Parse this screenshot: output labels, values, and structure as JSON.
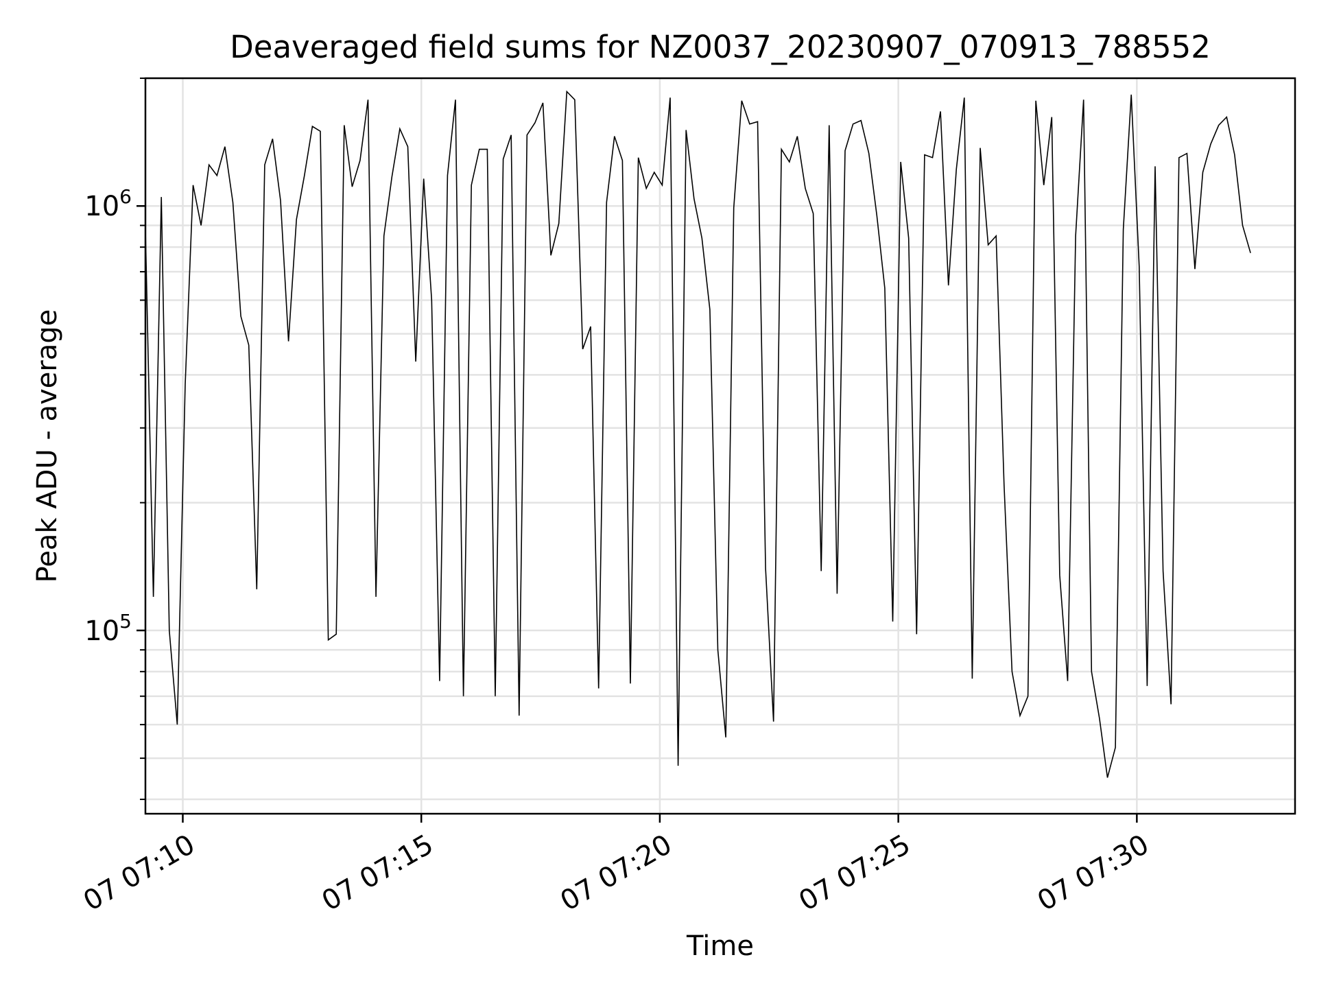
{
  "chart_data": {
    "type": "line",
    "title": "Deaveraged field sums for NZ0037_20230907_070913_788552",
    "xlabel": "Time",
    "ylabel": "Peak ADU - average",
    "y_scale": "log",
    "ylim": [
      37000,
      2000000
    ],
    "xlim": [
      "2023-09-07 07:09:13",
      "2023-09-07 07:33:19"
    ],
    "grid": true,
    "x_ticks": [
      {
        "value": "2023-09-07 07:10:00",
        "label": "07 07:10"
      },
      {
        "value": "2023-09-07 07:15:00",
        "label": "07 07:15"
      },
      {
        "value": "2023-09-07 07:20:00",
        "label": "07 07:20"
      },
      {
        "value": "2023-09-07 07:25:00",
        "label": "07 07:25"
      },
      {
        "value": "2023-09-07 07:30:00",
        "label": "07 07:30"
      }
    ],
    "y_ticks": [
      {
        "value": 100000,
        "base": "10",
        "exp": "5"
      },
      {
        "value": 1000000,
        "base": "10",
        "exp": "6"
      }
    ],
    "line_color": "#000000",
    "series": [
      {
        "x_start": "2023-09-07 07:09:13",
        "x_step_seconds": 10,
        "values": [
          880000,
          120000,
          1050000,
          100000,
          60000,
          380000,
          1120000,
          900000,
          1250000,
          1180000,
          1380000,
          1020000,
          550000,
          470000,
          125000,
          1250000,
          1440000,
          1030000,
          480000,
          930000,
          1180000,
          1540000,
          1500000,
          95000,
          98000,
          1550000,
          1110000,
          1280000,
          1780000,
          120000,
          850000,
          1170000,
          1520000,
          1380000,
          430000,
          1160000,
          600000,
          76000,
          1180000,
          1780000,
          70000,
          1120000,
          1360000,
          1360000,
          70000,
          1290000,
          1470000,
          63000,
          1470000,
          1570000,
          1750000,
          765000,
          910000,
          1860000,
          1780000,
          460000,
          520000,
          73000,
          1020000,
          1460000,
          1280000,
          75000,
          1300000,
          1100000,
          1200000,
          1120000,
          1800000,
          48000,
          1510000,
          1040000,
          840000,
          570000,
          90000,
          56000,
          990000,
          1770000,
          1560000,
          1580000,
          140000,
          61000,
          1360000,
          1270000,
          1460000,
          1100000,
          960000,
          138000,
          1550000,
          122000,
          1350000,
          1560000,
          1590000,
          1330000,
          950000,
          640000,
          105000,
          1270000,
          840000,
          98000,
          1320000,
          1300000,
          1670000,
          650000,
          1220000,
          1800000,
          77000,
          1370000,
          810000,
          850000,
          220000,
          80000,
          63000,
          70000,
          1770000,
          1120000,
          1620000,
          135000,
          76000,
          850000,
          1780000,
          80000,
          62000,
          45000,
          53000,
          880000,
          1830000,
          720000,
          74000,
          1240000,
          138000,
          67000,
          1300000,
          1330000,
          710000,
          1200000,
          1400000,
          1550000,
          1620000,
          1320000,
          900000,
          775000
        ]
      }
    ]
  }
}
